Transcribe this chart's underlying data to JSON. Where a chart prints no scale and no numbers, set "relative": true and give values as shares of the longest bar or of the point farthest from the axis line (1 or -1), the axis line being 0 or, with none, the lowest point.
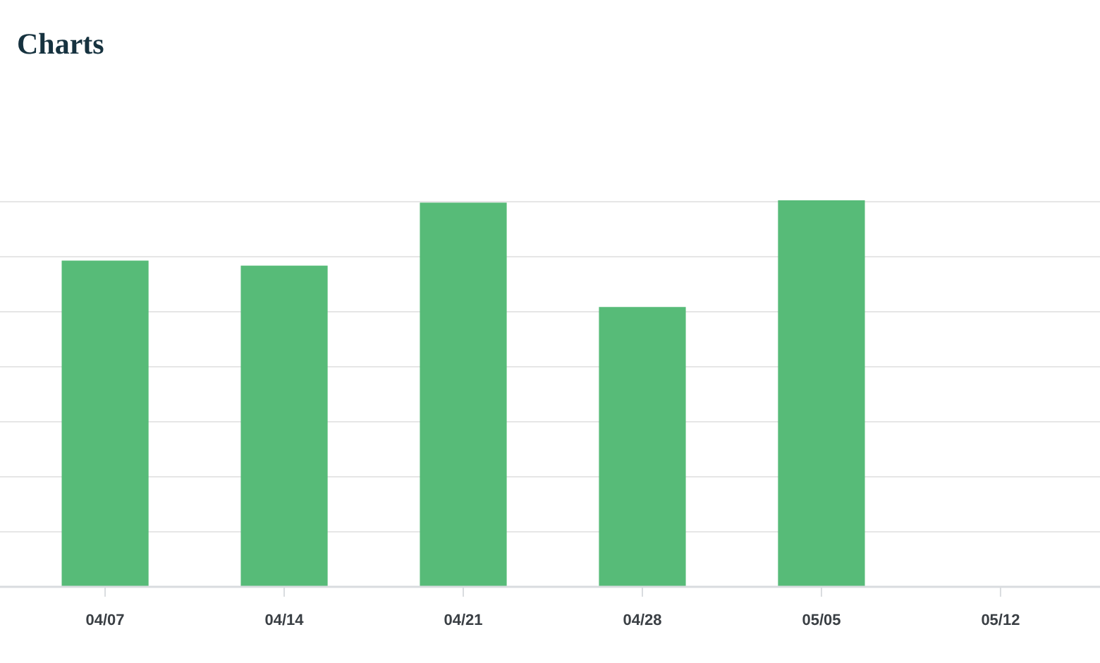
{
  "chart_data": {
    "type": "bar",
    "title": "Charts",
    "categories": [
      "04/07",
      "04/14",
      "04/21",
      "04/28",
      "05/05",
      "05/12"
    ],
    "values": [
      0.844,
      0.831,
      0.994,
      0.724,
      1,
      null
    ],
    "color": "#57bb78",
    "relative": true,
    "grid": true
  }
}
